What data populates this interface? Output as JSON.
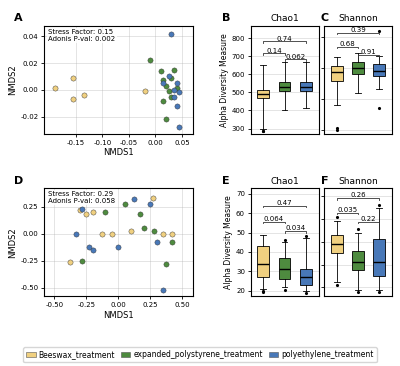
{
  "chart_data": [
    {
      "type": "scatter",
      "label": "A",
      "annotations": [
        "Stress Factor: 0.15",
        "Adonis P-val: 0.002"
      ],
      "xlabel": "NMDS1",
      "ylabel": "NMDS2",
      "xlim": [
        -0.21,
        0.07
      ],
      "ylim": [
        -0.033,
        0.048
      ],
      "xticks": [
        -0.15,
        {
          "value": -0.1,
          "label": "-0.10"
        },
        -0.05,
        {
          "value": 0,
          "label": "0.00"
        },
        0.05
      ],
      "yticks": [
        -0.02,
        {
          "value": 0,
          "label": "0.00"
        },
        0.02,
        0.04
      ],
      "grid": true,
      "legend": "lower center",
      "series": [
        {
          "name": "Beeswax_treatment",
          "color": "#F0D080",
          "x": [
            -0.19,
            -0.155,
            -0.155,
            -0.135,
            -0.02
          ],
          "y": [
            0.001,
            0.009,
            -0.007,
            -0.004,
            -0.001
          ]
        },
        {
          "name": "expanded_polystyrene_treatment",
          "color": "#4E8B3F",
          "x": [
            -0.01,
            0.01,
            0.015,
            0.02,
            0.025,
            0.03,
            0.035,
            0.04,
            0.03,
            0.02,
            0.015
          ],
          "y": [
            0.022,
            0.014,
            0.007,
            0.003,
            -0.001,
            0.009,
            0.015,
            0.001,
            -0.005,
            -0.022,
            -0.008
          ]
        },
        {
          "name": "polyethylene_treatment",
          "color": "#4878B8",
          "x": [
            0.03,
            0.015,
            0.025,
            0.04,
            0.035,
            0.045,
            0.035,
            0.04,
            0.045
          ],
          "y": [
            0.042,
            0.005,
            0.01,
            0.005,
            0.0,
            -0.002,
            -0.005,
            -0.012,
            -0.028
          ]
        }
      ]
    },
    {
      "type": "box",
      "label": "B",
      "title": "Chao1",
      "ylabel": "Alpha Diversity Measure",
      "ylim": [
        270,
        870
      ],
      "yticks": [
        300,
        400,
        500,
        600,
        700,
        800
      ],
      "grid": "y",
      "tick_labels": "y",
      "series": [
        {
          "name": "Beeswax_treatment",
          "color": "#F0D080",
          "median": 490,
          "q1": 468,
          "q3": 512,
          "whisker_low": 295,
          "whisker_high": 650,
          "fliers": [
            285,
            288
          ]
        },
        {
          "name": "expanded_polystyrene_treatment",
          "color": "#4E8B3F",
          "median": 530,
          "q1": 508,
          "q3": 558,
          "whisker_low": 405,
          "whisker_high": 668,
          "fliers": []
        },
        {
          "name": "polyethylene_treatment",
          "color": "#4878B8",
          "median": 530,
          "q1": 508,
          "q3": 555,
          "whisker_low": 415,
          "whisker_high": 668,
          "fliers": []
        }
      ],
      "comparisons": [
        {
          "between": [
            "Beeswax_treatment",
            "expanded_polystyrene_treatment"
          ],
          "y": 708,
          "label": "0.14"
        },
        {
          "between": [
            "Beeswax_treatment",
            "polyethylene_treatment"
          ],
          "y": 775,
          "label": "0.74"
        },
        {
          "between": [
            "expanded_polystyrene_treatment",
            "polyethylene_treatment"
          ],
          "y": 675,
          "label": "0.062"
        }
      ]
    },
    {
      "type": "box",
      "label": "C",
      "title": "Shannon",
      "ylim": [
        2.75,
        4.15
      ],
      "yticks": [
        2.8,
        3.2,
        3.6,
        4.0
      ],
      "grid": "y",
      "tick_labels": false,
      "series": [
        {
          "name": "Beeswax_treatment",
          "color": "#F0D080",
          "median": 3.55,
          "q1": 3.44,
          "q3": 3.63,
          "whisker_low": 3.12,
          "whisker_high": 3.75,
          "fliers": [
            2.8,
            2.83
          ]
        },
        {
          "name": "expanded_polystyrene_treatment",
          "color": "#4E8B3F",
          "median": 3.6,
          "q1": 3.52,
          "q3": 3.68,
          "whisker_low": 3.28,
          "whisker_high": 3.8,
          "fliers": []
        },
        {
          "name": "polyethylene_treatment",
          "color": "#4878B8",
          "median": 3.57,
          "q1": 3.5,
          "q3": 3.65,
          "whisker_low": 3.33,
          "whisker_high": 3.76,
          "fliers": [
            3.08,
            4.08
          ]
        }
      ],
      "comparisons": [
        {
          "between": [
            "Beeswax_treatment",
            "expanded_polystyrene_treatment"
          ],
          "y": 3.86,
          "label": "0.68"
        },
        {
          "between": [
            "Beeswax_treatment",
            "polyethylene_treatment"
          ],
          "y": 4.04,
          "label": "0.39"
        },
        {
          "between": [
            "expanded_polystyrene_treatment",
            "polyethylene_treatment"
          ],
          "y": 3.75,
          "label": "0.91"
        }
      ]
    },
    {
      "type": "scatter",
      "label": "D",
      "annotations": [
        "Stress Factor: 0.29",
        "Adonis P-val: 0.058"
      ],
      "xlabel": "NMDS1",
      "ylabel": "NMDS2",
      "xlim": [
        -0.58,
        0.58
      ],
      "ylim": [
        -0.58,
        0.42
      ],
      "xticks": [
        {
          "value": -0.5,
          "label": "-0.50"
        },
        -0.25,
        {
          "value": 0,
          "label": "0.00"
        },
        0.25,
        {
          "value": 0.5,
          "label": "0.50"
        }
      ],
      "yticks": [
        {
          "value": -0.5,
          "label": "-0.50"
        },
        -0.25,
        {
          "value": 0,
          "label": "0.00"
        },
        0.25
      ],
      "grid": true,
      "series": [
        {
          "name": "Beeswax_treatment",
          "color": "#F0D080",
          "x": [
            -0.38,
            -0.3,
            -0.25,
            -0.2,
            -0.13,
            -0.05,
            0.1,
            0.27,
            0.35,
            0.42
          ],
          "y": [
            -0.26,
            0.22,
            0.18,
            0.2,
            0.0,
            0.0,
            0.02,
            0.33,
            0.0,
            0.0
          ]
        },
        {
          "name": "expanded_polystyrene_treatment",
          "color": "#4E8B3F",
          "x": [
            -0.28,
            -0.1,
            0.05,
            0.17,
            0.2,
            0.28,
            0.37,
            0.42
          ],
          "y": [
            -0.25,
            0.2,
            0.27,
            0.18,
            0.05,
            0.02,
            -0.28,
            -0.08
          ]
        },
        {
          "name": "polyethylene_treatment",
          "color": "#4878B8",
          "x": [
            -0.33,
            -0.28,
            -0.23,
            -0.2,
            0.0,
            0.12,
            0.25,
            0.3,
            0.35
          ],
          "y": [
            0.0,
            0.23,
            -0.12,
            -0.15,
            -0.12,
            0.32,
            0.27,
            -0.08,
            -0.52
          ]
        }
      ]
    },
    {
      "type": "box",
      "label": "E",
      "title": "Chao1",
      "ylabel": "Alpha Diversity Measure",
      "ylim": [
        17,
        73
      ],
      "yticks": [
        20,
        30,
        40,
        50,
        60,
        70
      ],
      "grid": "y",
      "tick_labels": "y",
      "series": [
        {
          "name": "Beeswax_treatment",
          "color": "#F0D080",
          "median": 34,
          "q1": 27,
          "q3": 43,
          "whisker_low": 21,
          "whisker_high": 49,
          "fliers": [
            19.5,
            20.0
          ]
        },
        {
          "name": "expanded_polystyrene_treatment",
          "color": "#4E8B3F",
          "median": 31,
          "q1": 26,
          "q3": 37,
          "whisker_low": 22,
          "whisker_high": 45,
          "fliers": [
            20.5,
            46.0
          ]
        },
        {
          "name": "polyethylene_treatment",
          "color": "#4878B8",
          "median": 27,
          "q1": 23,
          "q3": 31,
          "whisker_low": 20,
          "whisker_high": 47,
          "fliers": [
            19.0,
            48.0
          ]
        }
      ],
      "comparisons": [
        {
          "between": [
            "Beeswax_treatment",
            "expanded_polystyrene_treatment"
          ],
          "y": 55,
          "label": "0.064"
        },
        {
          "between": [
            "Beeswax_treatment",
            "polyethylene_treatment"
          ],
          "y": 63,
          "label": "0.47"
        },
        {
          "between": [
            "expanded_polystyrene_treatment",
            "polyethylene_treatment"
          ],
          "y": 50,
          "label": "0.034"
        }
      ]
    },
    {
      "type": "box",
      "label": "F",
      "title": "Shannon",
      "ylim": [
        1.72,
        2.67
      ],
      "yticks": [
        1.8,
        2.0,
        2.2,
        2.4,
        2.6
      ],
      "grid": "y",
      "tick_labels": false,
      "series": [
        {
          "name": "Beeswax_treatment",
          "color": "#F0D080",
          "median": 2.18,
          "q1": 2.1,
          "q3": 2.26,
          "whisker_low": 1.85,
          "whisker_high": 2.38,
          "fliers": [
            1.82,
            2.42
          ]
        },
        {
          "name": "expanded_polystyrene_treatment",
          "color": "#4E8B3F",
          "median": 2.02,
          "q1": 1.95,
          "q3": 2.12,
          "whisker_low": 1.78,
          "whisker_high": 2.28,
          "fliers": [
            1.76,
            2.31
          ]
        },
        {
          "name": "polyethylene_treatment",
          "color": "#4878B8",
          "median": 2.02,
          "q1": 1.9,
          "q3": 2.22,
          "whisker_low": 1.78,
          "whisker_high": 2.5,
          "fliers": [
            1.76,
            2.52
          ]
        }
      ],
      "comparisons": [
        {
          "between": [
            "Beeswax_treatment",
            "expanded_polystyrene_treatment"
          ],
          "y": 2.44,
          "label": "0.035"
        },
        {
          "between": [
            "Beeswax_treatment",
            "polyethylene_treatment"
          ],
          "y": 2.57,
          "label": "0.26"
        },
        {
          "between": [
            "expanded_polystyrene_treatment",
            "polyethylene_treatment"
          ],
          "y": 2.36,
          "label": "0.22"
        }
      ]
    }
  ]
}
